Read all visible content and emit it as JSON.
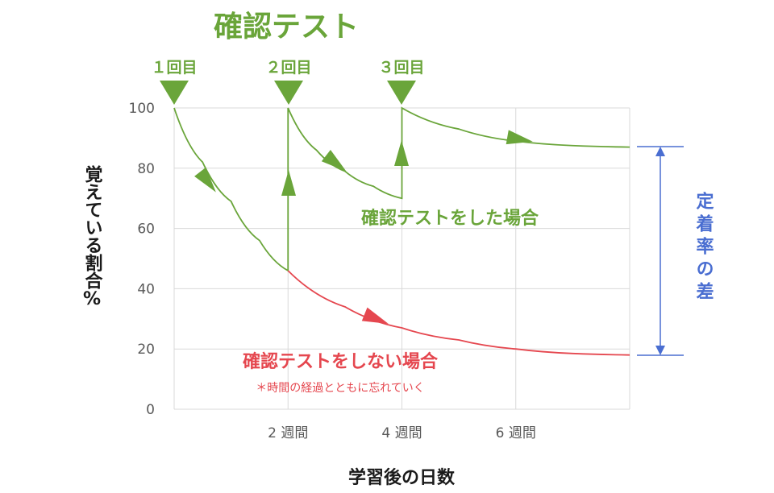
{
  "title": "確認テスト",
  "test_labels": [
    "１回目",
    "２回目",
    "３回目"
  ],
  "colors": {
    "green": "#6aa53a",
    "red": "#e5474f",
    "blue": "#4a6ed1",
    "grid": "#d9d9d9",
    "axis_text": "#595959",
    "title_text": "#1a1a1a"
  },
  "chart_data": {
    "type": "line",
    "xlabel": "学習後の日数",
    "ylabel": "覚えている割合%",
    "ylim": [
      0,
      100
    ],
    "y_ticks": [
      0,
      20,
      40,
      60,
      80,
      100
    ],
    "x_ticks": [
      {
        "x": 2,
        "label": "2 週間"
      },
      {
        "x": 4,
        "label": "4 週間"
      },
      {
        "x": 6,
        "label": "6 週間"
      }
    ],
    "xlim": [
      0,
      8
    ],
    "grid": true,
    "series": [
      {
        "name": "確認テストをした場合",
        "color": "green",
        "points": [
          [
            0,
            100
          ],
          [
            0.5,
            82
          ],
          [
            1,
            69
          ],
          [
            1.5,
            56
          ],
          [
            2,
            46
          ],
          [
            2,
            100
          ],
          [
            2.5,
            86
          ],
          [
            3,
            79
          ],
          [
            3.5,
            74
          ],
          [
            4,
            70
          ],
          [
            4,
            100
          ],
          [
            5,
            93
          ],
          [
            6,
            89
          ],
          [
            7,
            87.5
          ],
          [
            8,
            87
          ]
        ]
      },
      {
        "name": "確認テストをしない場合",
        "color": "red",
        "points": [
          [
            2,
            46
          ],
          [
            3,
            34
          ],
          [
            4,
            27
          ],
          [
            5,
            23
          ],
          [
            6,
            20
          ],
          [
            7,
            18.5
          ],
          [
            8,
            18
          ]
        ]
      }
    ],
    "annotations": {
      "green_label": "確認テストをした場合",
      "red_label": "確認テストをしない場合",
      "red_note": "＊時間の経過とともに忘れていく",
      "diff_label": "定着率の差"
    }
  }
}
